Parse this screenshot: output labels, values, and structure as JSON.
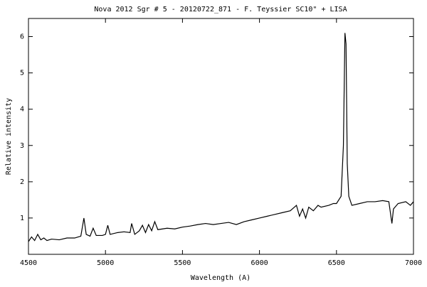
{
  "chart_data": {
    "type": "line",
    "title": "Nova 2012 Sgr # 5 - 20120722_871 - F. Teyssier SC10\" + LISA",
    "x_label": "Wavelength (A)",
    "y_label": "Relative intensity",
    "color": "#000000",
    "x": [
      4500,
      4520,
      4540,
      4560,
      4580,
      4600,
      4620,
      4650,
      4700,
      4750,
      4800,
      4840,
      4860,
      4875,
      4900,
      4920,
      4940,
      4980,
      5000,
      5015,
      5030,
      5080,
      5120,
      5160,
      5170,
      5190,
      5220,
      5240,
      5260,
      5280,
      5300,
      5320,
      5340,
      5400,
      5450,
      5500,
      5550,
      5600,
      5650,
      5700,
      5750,
      5800,
      5850,
      5900,
      5950,
      6000,
      6050,
      6100,
      6150,
      6200,
      6240,
      6260,
      6280,
      6300,
      6320,
      6350,
      6380,
      6400,
      6450,
      6480,
      6500,
      6530,
      6545,
      6555,
      6562,
      6570,
      6580,
      6600,
      6650,
      6700,
      6750,
      6800,
      6840,
      6860,
      6870,
      6900,
      6950,
      6980,
      7000
    ],
    "values": [
      0.35,
      0.48,
      0.38,
      0.55,
      0.4,
      0.45,
      0.38,
      0.42,
      0.4,
      0.45,
      0.45,
      0.5,
      1.0,
      0.55,
      0.5,
      0.72,
      0.52,
      0.52,
      0.55,
      0.8,
      0.55,
      0.6,
      0.62,
      0.6,
      0.85,
      0.55,
      0.65,
      0.8,
      0.6,
      0.82,
      0.65,
      0.9,
      0.68,
      0.72,
      0.7,
      0.75,
      0.78,
      0.82,
      0.85,
      0.82,
      0.85,
      0.88,
      0.82,
      0.9,
      0.95,
      1.0,
      1.05,
      1.1,
      1.15,
      1.2,
      1.35,
      1.05,
      1.25,
      1.0,
      1.3,
      1.2,
      1.35,
      1.3,
      1.35,
      1.4,
      1.4,
      1.6,
      3.0,
      6.1,
      5.8,
      2.5,
      1.6,
      1.35,
      1.4,
      1.45,
      1.45,
      1.48,
      1.45,
      0.85,
      1.25,
      1.4,
      1.45,
      1.35,
      1.45
    ],
    "xlim": [
      4500,
      7000
    ],
    "xticks": [
      4500,
      5000,
      5500,
      6000,
      6500,
      7000
    ],
    "ylim": [
      0,
      6.5
    ],
    "yticks": [
      1,
      2,
      3,
      4,
      5,
      6
    ]
  }
}
